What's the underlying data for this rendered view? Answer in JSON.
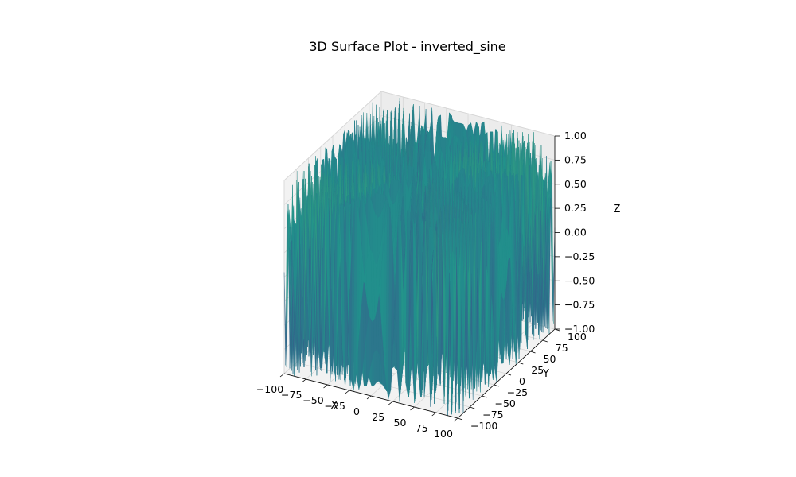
{
  "chart_data": {
    "type": "surface3d",
    "title": "3D Surface Plot - inverted_sine",
    "xlabel": "X",
    "ylabel": "Y",
    "zlabel": "Z",
    "xlim": [
      -100,
      100
    ],
    "ylim": [
      -100,
      100
    ],
    "zlim": [
      -1,
      1
    ],
    "xticks": [
      -100,
      -75,
      -50,
      -25,
      0,
      25,
      50,
      75,
      100
    ],
    "yticks": [
      -100,
      -75,
      -50,
      -25,
      0,
      25,
      50,
      75,
      100
    ],
    "zticks": [
      -1.0,
      -0.75,
      -0.5,
      -0.25,
      0.0,
      0.25,
      0.5,
      0.75,
      1.0
    ],
    "xtick_labels": [
      "−100",
      "−75",
      "−50",
      "−25",
      "0",
      "25",
      "50",
      "75",
      "100"
    ],
    "ytick_labels": [
      "−100",
      "−75",
      "−50",
      "−25",
      "0",
      "25",
      "50",
      "75",
      "100"
    ],
    "ztick_labels": [
      "−1.00",
      "−0.75",
      "−0.50",
      "−0.25",
      "0.00",
      "0.25",
      "0.50",
      "0.75",
      "1.00"
    ],
    "colormap": "viridis",
    "colormap_stops": [
      "#440154",
      "#3b528b",
      "#21918c",
      "#5ec962",
      "#fde725"
    ],
    "grid": true
  }
}
